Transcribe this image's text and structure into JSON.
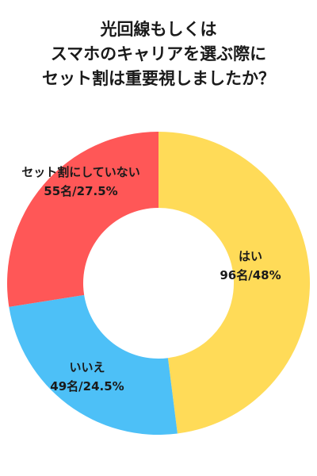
{
  "title_lines": [
    "光回線もしくは",
    "スマホのキャリアを選ぶ際に",
    "セット割は重要視しましたか？"
  ],
  "chart_data": {
    "type": "pie",
    "title": "光回線もしくはスマホのキャリアを選ぶ際にセット割は重要視しましたか？",
    "slices": [
      {
        "label": "はい",
        "count": 96,
        "percent": 48,
        "value_label": "96名/48%",
        "color": "#FFDB58"
      },
      {
        "label": "いいえ",
        "count": 49,
        "percent": 24.5,
        "value_label": "49名/24.5%",
        "color": "#4DC0F7"
      },
      {
        "label": "セット割にしていない",
        "count": 55,
        "percent": 27.5,
        "value_label": "55名/27.5%",
        "color": "#FF5757"
      }
    ]
  }
}
